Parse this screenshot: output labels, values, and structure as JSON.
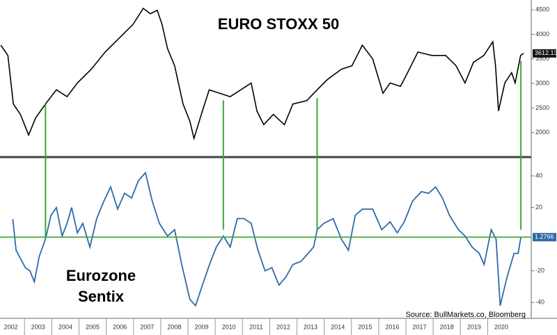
{
  "chart_data": [
    {
      "type": "line",
      "title": "EURO STOXX 50",
      "series": [
        {
          "name": "EURO STOXX 50",
          "color": "#000000",
          "x": [
            2002.13,
            2002.39,
            2002.59,
            2002.85,
            2003.15,
            2003.41,
            2003.77,
            2004.17,
            2004.56,
            2004.94,
            2005.45,
            2005.96,
            2006.47,
            2006.98,
            2007.36,
            2007.62,
            2007.87,
            2008.05,
            2008.25,
            2008.51,
            2008.82,
            2009.07,
            2009.22,
            2009.53,
            2009.78,
            2010.17,
            2010.55,
            2010.94,
            2011.32,
            2011.53,
            2011.78,
            2012.13,
            2012.54,
            2012.85,
            2013.36,
            2013.74,
            2014.12,
            2014.63,
            2015.02,
            2015.4,
            2015.78,
            2016.16,
            2016.42,
            2016.8,
            2017.06,
            2017.44,
            2017.95,
            2018.46,
            2018.84,
            2019.17,
            2019.48,
            2019.86,
            2020.19,
            2020.29,
            2020.4,
            2020.63,
            2020.88,
            2021.01,
            2021.21,
            2021.32
          ],
          "values": [
            3780,
            3570,
            2580,
            2370,
            1950,
            2300,
            2580,
            2870,
            2730,
            3010,
            3290,
            3640,
            3920,
            4200,
            4530,
            4420,
            4490,
            4200,
            3710,
            3360,
            2580,
            2230,
            1880,
            2440,
            2870,
            2800,
            2730,
            2870,
            3010,
            2440,
            2160,
            2370,
            2160,
            2580,
            2650,
            2870,
            3080,
            3290,
            3360,
            3780,
            3500,
            2800,
            3010,
            2940,
            3220,
            3640,
            3570,
            3570,
            3360,
            3010,
            3430,
            3570,
            3850,
            3360,
            2440,
            3010,
            3220,
            3010,
            3570,
            3612.13
          ]
        }
      ],
      "xlim": [
        2002.1,
        2021.6
      ],
      "ylim": [
        1500,
        4700
      ],
      "yticks": [
        2000,
        2500,
        3000,
        3500,
        4000,
        4500
      ]
    },
    {
      "type": "line",
      "title": "Eurozone Sentix",
      "series": [
        {
          "name": "Eurozone Sentix",
          "color": "#2e6aa8",
          "x": [
            2002.57,
            2002.69,
            2003.03,
            2003.2,
            2003.36,
            2003.54,
            2003.77,
            2003.97,
            2004.17,
            2004.38,
            2004.56,
            2004.73,
            2004.94,
            2005.14,
            2005.4,
            2005.65,
            2005.91,
            2006.16,
            2006.42,
            2006.67,
            2006.93,
            2007.18,
            2007.44,
            2007.69,
            2007.95,
            2008.25,
            2008.51,
            2008.77,
            2009.07,
            2009.28,
            2009.53,
            2009.79,
            2010.04,
            2010.3,
            2010.55,
            2010.81,
            2011.06,
            2011.32,
            2011.57,
            2011.83,
            2012.08,
            2012.34,
            2012.59,
            2012.85,
            2013.15,
            2013.41,
            2013.61,
            2013.74,
            2013.99,
            2014.33,
            2014.63,
            2014.89,
            2015.14,
            2015.4,
            2015.78,
            2016.11,
            2016.42,
            2016.68,
            2016.94,
            2017.24,
            2017.57,
            2017.83,
            2018.09,
            2018.34,
            2018.6,
            2018.93,
            2019.17,
            2019.43,
            2019.69,
            2019.87,
            2020.13,
            2020.31,
            2020.46,
            2020.71,
            2020.97,
            2021.12,
            2021.22
          ],
          "values": [
            12.7,
            -7,
            -18,
            -20,
            -27,
            -11,
            0,
            15,
            20,
            2,
            10,
            20,
            4,
            10,
            -5,
            13,
            24,
            33,
            19,
            29,
            26,
            37,
            42,
            24,
            10,
            2,
            6,
            -16,
            -38,
            -42,
            -29,
            -16,
            -5,
            2,
            -5,
            13,
            13,
            10,
            -7,
            -20,
            -18,
            -29,
            -24,
            -16,
            -14,
            -9,
            -5,
            6,
            10,
            13,
            0,
            -7,
            15,
            19,
            19,
            6,
            11,
            4,
            11,
            24,
            30,
            29,
            33,
            26,
            15,
            6,
            2,
            -5,
            -9,
            -16,
            6,
            0,
            -42,
            -24,
            -9,
            -9,
            1.2766
          ]
        }
      ],
      "reference_line": {
        "value": 1.2766,
        "color": "#3aa832"
      },
      "xlim": [
        2002.1,
        2021.6
      ],
      "ylim": [
        -50,
        51
      ],
      "yticks": [
        -40,
        -20,
        20,
        40
      ],
      "xticks": [
        {
          "value": 2002.5,
          "label": "2002"
        },
        {
          "value": 2003.5,
          "label": "2003"
        },
        {
          "value": 2004.5,
          "label": "2004"
        },
        {
          "value": 2005.5,
          "label": "2005"
        },
        {
          "value": 2006.5,
          "label": "2006"
        },
        {
          "value": 2007.5,
          "label": "2007"
        },
        {
          "value": 2008.5,
          "label": "2008"
        },
        {
          "value": 2009.5,
          "label": "2009"
        },
        {
          "value": 2010.5,
          "label": "2010"
        },
        {
          "value": 2011.5,
          "label": "2011"
        },
        {
          "value": 2012.5,
          "label": "2012"
        },
        {
          "value": 2013.5,
          "label": "2013"
        },
        {
          "value": 2014.5,
          "label": "2014"
        },
        {
          "value": 2015.5,
          "label": "2015"
        },
        {
          "value": 2016.5,
          "label": "2016"
        },
        {
          "value": 2017.5,
          "label": "2017"
        },
        {
          "value": 2018.5,
          "label": "2018"
        },
        {
          "value": 2019.5,
          "label": "2019"
        },
        {
          "value": 2020.5,
          "label": "2020"
        }
      ],
      "source": "Source: BullMarkets.co, Bloomberg"
    }
  ],
  "signals": {
    "color": "#3aa832",
    "lines": [
      {
        "x": 2003.77,
        "from": 2580,
        "to": 0.4
      },
      {
        "x": 2010.3,
        "from": 2655,
        "to": 6
      },
      {
        "x": 2013.74,
        "from": 2700,
        "to": 6
      },
      {
        "x": 2021.22,
        "from": 3460,
        "to": 6
      }
    ]
  }
}
